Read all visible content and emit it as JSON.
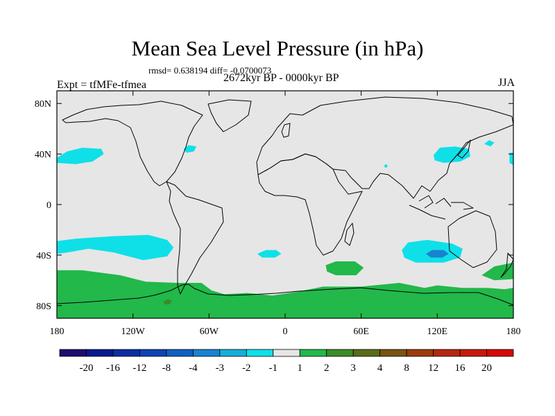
{
  "chart_data": {
    "type": "heatmap",
    "title": "Mean Sea Level Pressure (in hPa)",
    "subtitle": "rmsd= 0.638194 diff= -0.0700073",
    "period": "2672kyr BP - 0000kyr BP",
    "left_label": "Expt = tfMFe-tfmea",
    "right_label": "JJA",
    "xlim": [
      -180,
      180
    ],
    "ylim": [
      -90,
      90
    ],
    "x_ticks": [
      {
        "value": -180,
        "label": "180"
      },
      {
        "value": -120,
        "label": "120W"
      },
      {
        "value": -60,
        "label": "60W"
      },
      {
        "value": 0,
        "label": "0"
      },
      {
        "value": 60,
        "label": "60E"
      },
      {
        "value": 120,
        "label": "120E"
      },
      {
        "value": 180,
        "label": "180"
      }
    ],
    "y_ticks": [
      {
        "value": 80,
        "label": "80N"
      },
      {
        "value": 40,
        "label": "40N"
      },
      {
        "value": 0,
        "label": "0"
      },
      {
        "value": -40,
        "label": "40S"
      },
      {
        "value": -80,
        "label": "80S"
      }
    ],
    "colorbar": {
      "levels": [
        "-20",
        "-16",
        "-12",
        "-8",
        "-4",
        "-3",
        "-2",
        "-1",
        "1",
        "2",
        "3",
        "4",
        "8",
        "12",
        "16",
        "20"
      ],
      "colors": [
        "#1e0f6e",
        "#0a1a8c",
        "#0b2fa0",
        "#0d44b4",
        "#1060c0",
        "#1a82d0",
        "#14aed8",
        "#0fe0e8",
        "#e6e6e6",
        "#22b84a",
        "#3c8c28",
        "#5a6c18",
        "#7a5412",
        "#9a3c10",
        "#b42810",
        "#c81a0e",
        "#d40a0a"
      ],
      "background_color": "#e6e6e6"
    },
    "regions": [
      {
        "name": "north-pacific-low",
        "level": "-2",
        "color": "#0fe0e8",
        "points": [
          [
            -180,
            37
          ],
          [
            -172,
            42
          ],
          [
            -160,
            45
          ],
          [
            -145,
            44
          ],
          [
            -143,
            40
          ],
          [
            -152,
            34
          ],
          [
            -165,
            32
          ],
          [
            -180,
            33
          ]
        ]
      },
      {
        "name": "north-pacific-low-east",
        "level": "-2",
        "color": "#0fe0e8",
        "points": [
          [
            177,
            41
          ],
          [
            180,
            41
          ],
          [
            180,
            31
          ],
          [
            177,
            33
          ]
        ]
      },
      {
        "name": "south-pacific-low",
        "level": "-2",
        "color": "#0fe0e8",
        "points": [
          [
            -180,
            -29
          ],
          [
            -165,
            -27
          ],
          [
            -135,
            -25
          ],
          [
            -108,
            -24
          ],
          [
            -93,
            -28
          ],
          [
            -88,
            -34
          ],
          [
            -93,
            -41
          ],
          [
            -112,
            -44
          ],
          [
            -135,
            -38
          ],
          [
            -155,
            -35
          ],
          [
            -172,
            -38
          ],
          [
            -180,
            -39
          ]
        ]
      },
      {
        "name": "indian-ocean-low",
        "level": "-2",
        "color": "#0fe0e8",
        "points": [
          [
            92,
            -36
          ],
          [
            97,
            -30
          ],
          [
            112,
            -28
          ],
          [
            132,
            -31
          ],
          [
            140,
            -35
          ],
          [
            138,
            -42
          ],
          [
            125,
            -46
          ],
          [
            103,
            -46
          ],
          [
            94,
            -42
          ]
        ]
      },
      {
        "name": "indian-ocean-low-core",
        "level": "-3",
        "color": "#1a82d0",
        "points": [
          [
            111,
            -39
          ],
          [
            116,
            -36
          ],
          [
            125,
            -36
          ],
          [
            129,
            -39
          ],
          [
            124,
            -42
          ],
          [
            115,
            -42
          ]
        ]
      },
      {
        "name": "south-atlantic-low",
        "level": "-2",
        "color": "#0fe0e8",
        "points": [
          [
            -22,
            -39
          ],
          [
            -15,
            -36
          ],
          [
            -7,
            -36
          ],
          [
            -3,
            -39
          ],
          [
            -8,
            -42
          ],
          [
            -18,
            -42
          ]
        ]
      },
      {
        "name": "east-asia-low",
        "level": "-2",
        "color": "#0fe0e8",
        "points": [
          [
            117,
            39
          ],
          [
            122,
            45
          ],
          [
            134,
            46
          ],
          [
            145,
            44
          ],
          [
            146,
            38
          ],
          [
            138,
            34
          ],
          [
            125,
            33
          ],
          [
            118,
            35
          ]
        ]
      },
      {
        "name": "north-atlantic-low",
        "level": "-2",
        "color": "#0fe0e8",
        "points": [
          [
            -80,
            44
          ],
          [
            -76,
            47
          ],
          [
            -70,
            46
          ],
          [
            -72,
            42
          ],
          [
            -78,
            41
          ]
        ]
      },
      {
        "name": "north-pacific-low-small",
        "level": "-2",
        "color": "#0fe0e8",
        "points": [
          [
            157,
            48
          ],
          [
            161,
            51
          ],
          [
            165,
            49
          ],
          [
            162,
            46
          ]
        ]
      },
      {
        "name": "equatorial-low-dot",
        "level": "-2",
        "color": "#0fe0e8",
        "points": [
          [
            78,
            31
          ],
          [
            80,
            32
          ],
          [
            81,
            30
          ],
          [
            79,
            29
          ]
        ]
      },
      {
        "name": "southern-ocean-high",
        "level": "2",
        "color": "#22b84a",
        "points": [
          [
            -180,
            -52
          ],
          [
            -160,
            -52
          ],
          [
            -130,
            -56
          ],
          [
            -110,
            -61
          ],
          [
            -85,
            -62
          ],
          [
            -66,
            -62
          ],
          [
            -58,
            -68
          ],
          [
            -48,
            -71
          ],
          [
            -30,
            -70
          ],
          [
            -10,
            -72
          ],
          [
            10,
            -69
          ],
          [
            30,
            -65
          ],
          [
            60,
            -65
          ],
          [
            90,
            -62
          ],
          [
            110,
            -66
          ],
          [
            120,
            -64
          ],
          [
            140,
            -66
          ],
          [
            160,
            -66
          ],
          [
            173,
            -67
          ],
          [
            180,
            -66
          ],
          [
            180,
            -90
          ],
          [
            -180,
            -90
          ]
        ]
      },
      {
        "name": "south-indian-high",
        "level": "2",
        "color": "#22b84a",
        "points": [
          [
            32,
            -48
          ],
          [
            40,
            -45
          ],
          [
            55,
            -45
          ],
          [
            62,
            -50
          ],
          [
            56,
            -56
          ],
          [
            40,
            -56
          ],
          [
            33,
            -53
          ]
        ]
      },
      {
        "name": "tasman-high",
        "level": "2",
        "color": "#22b84a",
        "points": [
          [
            155,
            -56
          ],
          [
            165,
            -49
          ],
          [
            180,
            -46
          ],
          [
            180,
            -59
          ],
          [
            165,
            -60
          ]
        ]
      },
      {
        "name": "antarctic-high-spot",
        "level": "3",
        "color": "#3c8c28",
        "points": [
          [
            -96,
            -77
          ],
          [
            -93,
            -75
          ],
          [
            -89,
            -76
          ],
          [
            -91,
            -79
          ],
          [
            -95,
            -79
          ]
        ]
      }
    ]
  }
}
